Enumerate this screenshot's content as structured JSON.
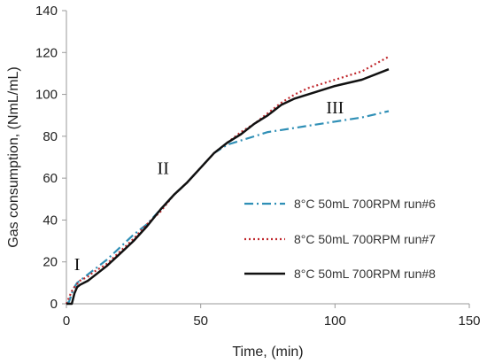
{
  "chart_data": {
    "type": "line",
    "xlabel": "Time, (min)",
    "ylabel": "Gas consumption, (NmL/mL)",
    "xlim": [
      0,
      150
    ],
    "ylim": [
      0,
      140
    ],
    "xticks": [
      0,
      50,
      100,
      150
    ],
    "yticks": [
      0,
      20,
      40,
      60,
      80,
      100,
      120,
      140
    ],
    "grid": false,
    "legend_position": "right",
    "annotations": [
      {
        "text": "I",
        "x": 4,
        "y": 16
      },
      {
        "text": "II",
        "x": 36,
        "y": 62
      },
      {
        "text": "III",
        "x": 100,
        "y": 91
      }
    ],
    "series": [
      {
        "name": "8°C 50mL 700RPM run#6",
        "color": "#2f8fb6",
        "dash": "10,4,2,4",
        "points": [
          [
            0,
            0
          ],
          [
            1,
            1
          ],
          [
            2,
            5
          ],
          [
            3,
            8
          ],
          [
            4,
            10
          ],
          [
            6,
            12
          ],
          [
            10,
            16
          ],
          [
            15,
            21
          ],
          [
            20,
            27
          ],
          [
            25,
            33
          ],
          [
            30,
            38
          ],
          [
            35,
            45
          ],
          [
            40,
            52
          ],
          [
            45,
            58
          ],
          [
            50,
            65
          ],
          [
            55,
            72
          ],
          [
            60,
            76
          ],
          [
            65,
            78
          ],
          [
            70,
            80
          ],
          [
            75,
            82
          ],
          [
            80,
            83
          ],
          [
            90,
            85
          ],
          [
            100,
            87
          ],
          [
            110,
            89
          ],
          [
            120,
            92
          ]
        ]
      },
      {
        "name": "8°C 50mL 700RPM run#7",
        "color": "#c0282d",
        "dash": "2,3",
        "points": [
          [
            0,
            0
          ],
          [
            1,
            3
          ],
          [
            2,
            6
          ],
          [
            3,
            8
          ],
          [
            5,
            11
          ],
          [
            8,
            13
          ],
          [
            10,
            15
          ],
          [
            15,
            19
          ],
          [
            20,
            25
          ],
          [
            25,
            31
          ],
          [
            30,
            38
          ],
          [
            35,
            44
          ],
          [
            40,
            52
          ],
          [
            45,
            58
          ],
          [
            50,
            65
          ],
          [
            55,
            72
          ],
          [
            60,
            77
          ],
          [
            65,
            82
          ],
          [
            70,
            86
          ],
          [
            75,
            91
          ],
          [
            80,
            96
          ],
          [
            85,
            100
          ],
          [
            90,
            103
          ],
          [
            100,
            107
          ],
          [
            110,
            111
          ],
          [
            120,
            118
          ]
        ]
      },
      {
        "name": "8°C 50mL 700RPM run#8",
        "color": "#111111",
        "dash": "",
        "points": [
          [
            0,
            0
          ],
          [
            1,
            0
          ],
          [
            2,
            0
          ],
          [
            3,
            5
          ],
          [
            4,
            8
          ],
          [
            5,
            9
          ],
          [
            8,
            11
          ],
          [
            10,
            13
          ],
          [
            15,
            18
          ],
          [
            20,
            24
          ],
          [
            25,
            30
          ],
          [
            30,
            37
          ],
          [
            35,
            45
          ],
          [
            40,
            52
          ],
          [
            45,
            58
          ],
          [
            50,
            65
          ],
          [
            55,
            72
          ],
          [
            60,
            77
          ],
          [
            65,
            81
          ],
          [
            70,
            86
          ],
          [
            75,
            90
          ],
          [
            80,
            95
          ],
          [
            85,
            98
          ],
          [
            90,
            100
          ],
          [
            100,
            104
          ],
          [
            110,
            107
          ],
          [
            120,
            112
          ]
        ]
      }
    ]
  }
}
